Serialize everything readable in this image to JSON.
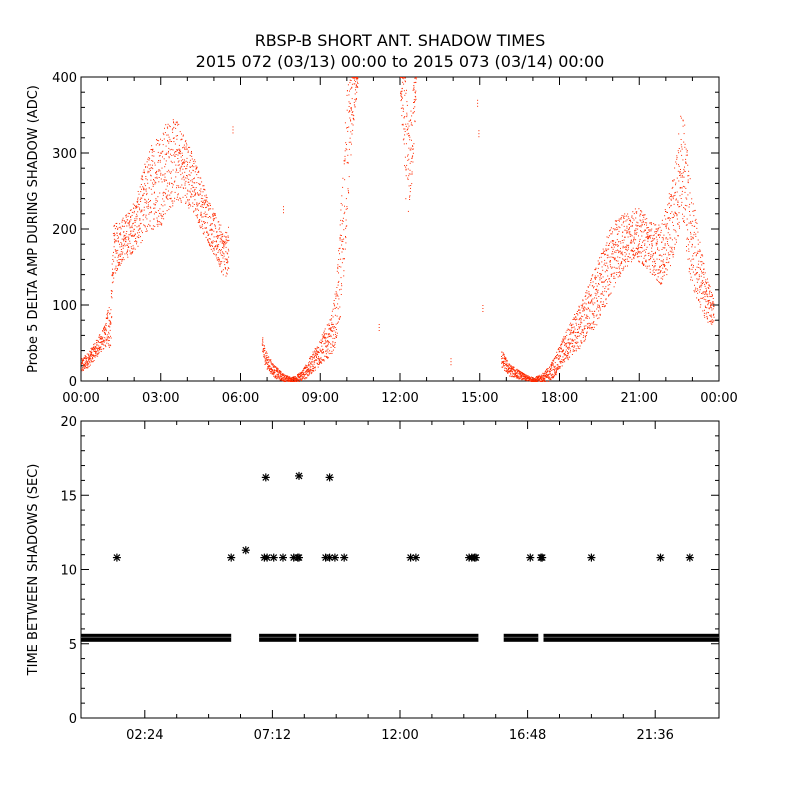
{
  "title": "RBSP-B SHORT ANT. SHADOW TIMES",
  "subtitle": "2015 072 (03/13) 00:00 to 2015 073 (03/14) 00:00",
  "colors": {
    "top_series": "#ff2a00",
    "bottom_series": "#000000",
    "axes": "#000000"
  },
  "chart_data": [
    {
      "type": "scatter",
      "ylabel": "Probe 5 DELTA AMP DURING SHADOW (ADC)",
      "xlabel": "",
      "xlim_hours": [
        0,
        24
      ],
      "ylim": [
        0,
        400
      ],
      "xtick_labels": [
        "00:00",
        "03:00",
        "06:00",
        "09:00",
        "12:00",
        "15:00",
        "18:00",
        "21:00",
        "00:00"
      ],
      "xtick_hours": [
        0,
        3,
        6,
        9,
        12,
        15,
        18,
        21,
        24
      ],
      "ytick_values": [
        0,
        100,
        200,
        300,
        400
      ],
      "ytick_labels": [
        "0",
        "100",
        "200",
        "300",
        "400"
      ],
      "series_segments": [
        {
          "x": [
            0.0,
            0.3,
            0.6,
            0.9,
            1.0,
            1.1,
            1.2,
            1.5,
            1.8,
            2.1,
            2.4,
            2.7,
            3.0,
            3.3,
            3.6,
            3.9,
            4.2,
            4.5,
            4.8,
            5.1,
            5.4,
            5.55
          ],
          "y": [
            20,
            30,
            45,
            60,
            75,
            70,
            170,
            185,
            195,
            210,
            240,
            260,
            270,
            285,
            290,
            280,
            260,
            235,
            210,
            185,
            165,
            175
          ],
          "spread": [
            10,
            10,
            12,
            15,
            30,
            30,
            35,
            30,
            30,
            35,
            50,
            60,
            65,
            60,
            55,
            45,
            40,
            35,
            30,
            30,
            30,
            30
          ]
        },
        {
          "x": [
            6.8,
            7.0,
            7.3,
            7.6,
            7.9,
            8.2,
            8.5,
            8.8,
            9.1,
            9.4,
            9.6,
            9.8,
            10.0,
            10.2,
            10.4
          ],
          "y": [
            45,
            25,
            12,
            5,
            2,
            5,
            15,
            30,
            45,
            60,
            90,
            180,
            300,
            370,
            395
          ],
          "spread": [
            15,
            10,
            8,
            5,
            3,
            6,
            10,
            15,
            20,
            25,
            40,
            80,
            90,
            40,
            10
          ]
        },
        {
          "x": [
            12.0,
            12.1,
            12.2,
            12.3,
            12.4,
            12.5,
            12.6
          ],
          "y": [
            390,
            360,
            320,
            280,
            300,
            350,
            395
          ],
          "spread": [
            15,
            50,
            80,
            60,
            60,
            50,
            15
          ]
        },
        {
          "x": [
            15.8,
            16.1,
            16.4,
            16.7,
            17.0,
            17.3,
            17.6,
            17.9,
            18.2,
            18.5,
            18.8,
            19.1,
            19.4,
            19.7,
            20.0,
            20.3,
            20.6,
            20.9,
            21.2,
            21.5,
            21.8,
            22.1,
            22.4,
            22.6,
            22.9,
            23.2,
            23.5,
            23.8
          ],
          "y": [
            30,
            15,
            10,
            5,
            2,
            4,
            10,
            25,
            45,
            60,
            75,
            95,
            115,
            140,
            165,
            180,
            190,
            195,
            185,
            175,
            165,
            195,
            240,
            300,
            200,
            150,
            110,
            90
          ],
          "spread": [
            12,
            8,
            6,
            4,
            3,
            5,
            10,
            15,
            20,
            25,
            30,
            35,
            40,
            45,
            45,
            40,
            35,
            35,
            35,
            35,
            40,
            50,
            60,
            80,
            70,
            50,
            30,
            20
          ]
        }
      ],
      "isolated_points": {
        "x": [
          5.7,
          7.6,
          11.2,
          13.9,
          14.9,
          14.95,
          15.1
        ],
        "y": [
          335,
          230,
          75,
          30,
          370,
          330,
          100
        ]
      }
    },
    {
      "type": "scatter",
      "ylabel": "TIME BETWEEN SHADOWS (SEC)",
      "xlabel": "",
      "xlim_hours": [
        0,
        24
      ],
      "ylim": [
        0,
        20
      ],
      "xtick_labels": [
        "02:24",
        "07:12",
        "12:00",
        "16:48",
        "21:36"
      ],
      "xtick_hours": [
        2.4,
        7.2,
        12.0,
        16.8,
        21.6
      ],
      "ytick_values": [
        0,
        5,
        10,
        15,
        20
      ],
      "ytick_labels": [
        "0",
        "5",
        "10",
        "15",
        "20"
      ],
      "baseline_segments": [
        {
          "start_hour": 0.0,
          "end_hour": 5.65,
          "value": 5.4
        },
        {
          "start_hour": 6.7,
          "end_hour": 8.1,
          "value": 5.4
        },
        {
          "start_hour": 8.2,
          "end_hour": 14.95,
          "value": 5.4
        },
        {
          "start_hour": 15.9,
          "end_hour": 17.2,
          "value": 5.4
        },
        {
          "start_hour": 17.4,
          "end_hour": 24.0,
          "value": 5.4
        }
      ],
      "points": {
        "x": [
          1.35,
          5.65,
          6.2,
          6.9,
          7.0,
          7.25,
          7.6,
          8.0,
          8.15,
          8.2,
          9.2,
          9.35,
          9.55,
          9.9,
          12.4,
          12.6,
          14.6,
          14.7,
          14.8,
          14.85,
          16.9,
          17.3,
          17.35,
          19.2,
          21.8,
          22.9,
          6.95,
          8.2,
          9.35
        ],
        "y": [
          10.8,
          10.8,
          11.3,
          10.8,
          10.8,
          10.8,
          10.8,
          10.8,
          10.8,
          10.8,
          10.8,
          10.8,
          10.8,
          10.8,
          10.8,
          10.8,
          10.8,
          10.8,
          10.8,
          10.8,
          10.8,
          10.8,
          10.8,
          10.8,
          10.8,
          10.8,
          16.2,
          16.3,
          16.2
        ]
      }
    }
  ]
}
